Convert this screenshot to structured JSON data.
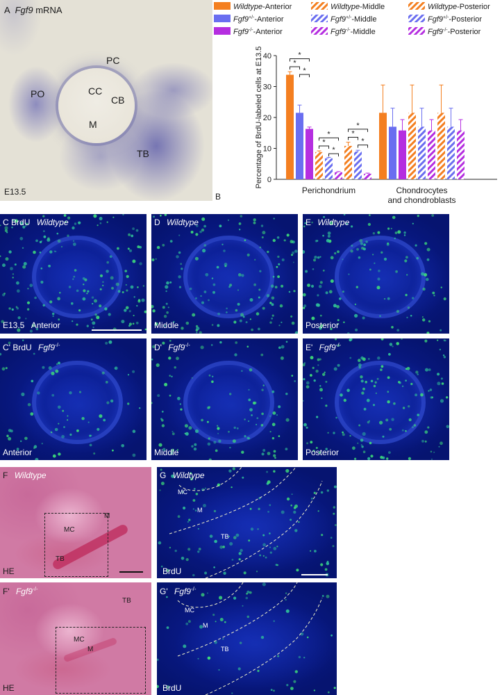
{
  "panel_a": {
    "letter": "A",
    "title_gene": "Fgf9",
    "title_suffix": " mRNA",
    "labels": {
      "pc": "PC",
      "po": "PO",
      "cc": "CC",
      "cb": "CB",
      "m": "M",
      "tb": "TB"
    },
    "stage": "E13.5"
  },
  "panel_b": {
    "letter": "B",
    "legend": [
      {
        "genotype": "Wildtype",
        "sup": "",
        "region": "-Anterior",
        "color": "#f47f20",
        "pattern": "solid"
      },
      {
        "genotype": "Fgf9",
        "sup": "+/-",
        "region": "-Anterior",
        "color": "#6a6ef0",
        "pattern": "solid"
      },
      {
        "genotype": "Fgf9",
        "sup": "-/-",
        "region": "-Anterior",
        "color": "#b52ee0",
        "pattern": "solid"
      },
      {
        "genotype": "Wildtype",
        "sup": "",
        "region": "-Middle",
        "color": "#f47f20",
        "pattern": "hatched"
      },
      {
        "genotype": "Fgf9",
        "sup": "+/-",
        "region": "-Middle",
        "color": "#6a6ef0",
        "pattern": "hatched"
      },
      {
        "genotype": "Fgf9",
        "sup": "-/-",
        "region": "-Middle",
        "color": "#b52ee0",
        "pattern": "hatched"
      },
      {
        "genotype": "Wildtype",
        "sup": "",
        "region": "-Posterior",
        "color": "#f47f20",
        "pattern": "hatched"
      },
      {
        "genotype": "Fgf9",
        "sup": "+/-",
        "region": "-Posterior",
        "color": "#6a6ef0",
        "pattern": "hatched"
      },
      {
        "genotype": "Fgf9",
        "sup": "-/-",
        "region": "-Posterior",
        "color": "#b52ee0",
        "pattern": "hatched"
      }
    ]
  },
  "chart_data": {
    "type": "bar",
    "ylabel": "Percentage of BrdU-labeled cells at E13.5",
    "ylim": [
      0,
      40
    ],
    "yticks": [
      "0",
      "10",
      "20",
      "30",
      "40"
    ],
    "categories": [
      "Perichondrium",
      "Chondrocytes and chondroblasts"
    ],
    "category_lines": [
      [
        "Perichondrium"
      ],
      [
        "Chondrocytes",
        "and chondroblasts"
      ]
    ],
    "significance_marker": "*",
    "series": [
      {
        "color": "#f47f20",
        "pattern": "solid",
        "values": [
          33.8,
          21.5
        ],
        "errors": [
          1.0,
          9.0
        ]
      },
      {
        "color": "#6a6ef0",
        "pattern": "solid",
        "values": [
          21.5,
          17.0
        ],
        "errors": [
          2.5,
          6.0
        ]
      },
      {
        "color": "#b52ee0",
        "pattern": "solid",
        "values": [
          16.3,
          15.8
        ],
        "errors": [
          0.6,
          3.5
        ]
      },
      {
        "color": "#f47f20",
        "pattern": "hatched",
        "values": [
          8.8,
          21.5
        ],
        "errors": [
          0.4,
          9.0
        ]
      },
      {
        "color": "#6a6ef0",
        "pattern": "hatched",
        "values": [
          6.8,
          17.0
        ],
        "errors": [
          0.3,
          6.0
        ]
      },
      {
        "color": "#b52ee0",
        "pattern": "hatched",
        "values": [
          2.3,
          15.8
        ],
        "errors": [
          0.2,
          3.5
        ]
      },
      {
        "color": "#f47f20",
        "pattern": "hatched",
        "values": [
          10.8,
          21.5
        ],
        "errors": [
          1.2,
          9.0
        ]
      },
      {
        "color": "#6a6ef0",
        "pattern": "hatched",
        "values": [
          9.0,
          17.0
        ],
        "errors": [
          0.4,
          6.0
        ]
      },
      {
        "color": "#b52ee0",
        "pattern": "hatched",
        "values": [
          1.8,
          15.8
        ],
        "errors": [
          0.2,
          3.5
        ]
      }
    ],
    "brackets": [
      [
        0,
        1
      ],
      [
        0,
        2
      ],
      [
        1,
        2
      ],
      [
        3,
        4
      ],
      [
        3,
        5
      ],
      [
        4,
        5
      ],
      [
        6,
        7
      ],
      [
        6,
        8
      ],
      [
        7,
        8
      ]
    ]
  },
  "panels_brdu": {
    "c": {
      "letter": "C",
      "stain": "BrdU",
      "genotype": "Wildtype",
      "stage": "E13.5",
      "region": "Anterior"
    },
    "d": {
      "letter": "D",
      "genotype": "Wildtype",
      "region": "Middle"
    },
    "e": {
      "letter": "E",
      "genotype": "Wildtype",
      "region": "Posterior"
    },
    "c2": {
      "letter": "C'",
      "stain": "BrdU",
      "gene": "Fgf9",
      "sup": "-/-",
      "region": "Anterior"
    },
    "d2": {
      "letter": "D'",
      "gene": "Fgf9",
      "sup": "-/-",
      "region": "Middle"
    },
    "e2": {
      "letter": "E'",
      "gene": "Fgf9",
      "sup": "-/-",
      "region": "Posterior"
    }
  },
  "panels_he": {
    "f": {
      "letter": "F",
      "genotype": "Wildtype",
      "stain": "HE",
      "labels": {
        "mc": "MC",
        "m": "M",
        "tb": "TB"
      }
    },
    "f2": {
      "letter": "F'",
      "gene": "Fgf9",
      "sup": "-/-",
      "stain": "HE",
      "labels": {
        "mc": "MC",
        "m": "M",
        "tb": "TB"
      }
    }
  },
  "panels_g": {
    "g": {
      "letter": "G",
      "genotype": "Wildtype",
      "stain": "BrdU",
      "labels": {
        "mc": "MC",
        "m": "M",
        "tb": "TB"
      }
    },
    "g2": {
      "letter": "G'",
      "gene": "Fgf9",
      "sup": "-/-",
      "stain": "BrdU",
      "labels": {
        "mc": "MC",
        "m": "M",
        "tb": "TB"
      }
    }
  }
}
